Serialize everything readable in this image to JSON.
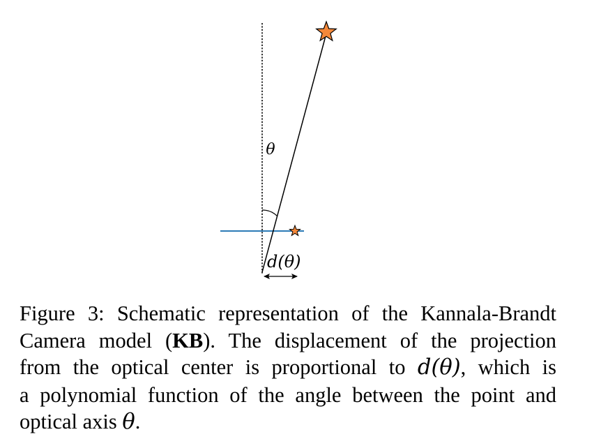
{
  "diagram": {
    "theta_label": "θ",
    "displacement_label": "d(θ)",
    "colors": {
      "star_fill": "#f4883a",
      "star_stroke": "#000000",
      "image_plane": "#2c7bb6",
      "ray": "#000000",
      "axis": "#000000"
    }
  },
  "caption": {
    "line1_a": "Figure 3: Schematic representation of the Kannala-Brandt",
    "line2_a": "Camera model (",
    "line2_bold": "KB",
    "line2_b": "). The displacement of the projection",
    "line3_a": "from the optical center is proportional to ",
    "line3_math": "d(θ)",
    "line3_b": ", which is",
    "line4": "a polynomial function of the angle between the point and",
    "line5_a": "optical axis ",
    "line5_math": "θ",
    "line5_b": "."
  }
}
